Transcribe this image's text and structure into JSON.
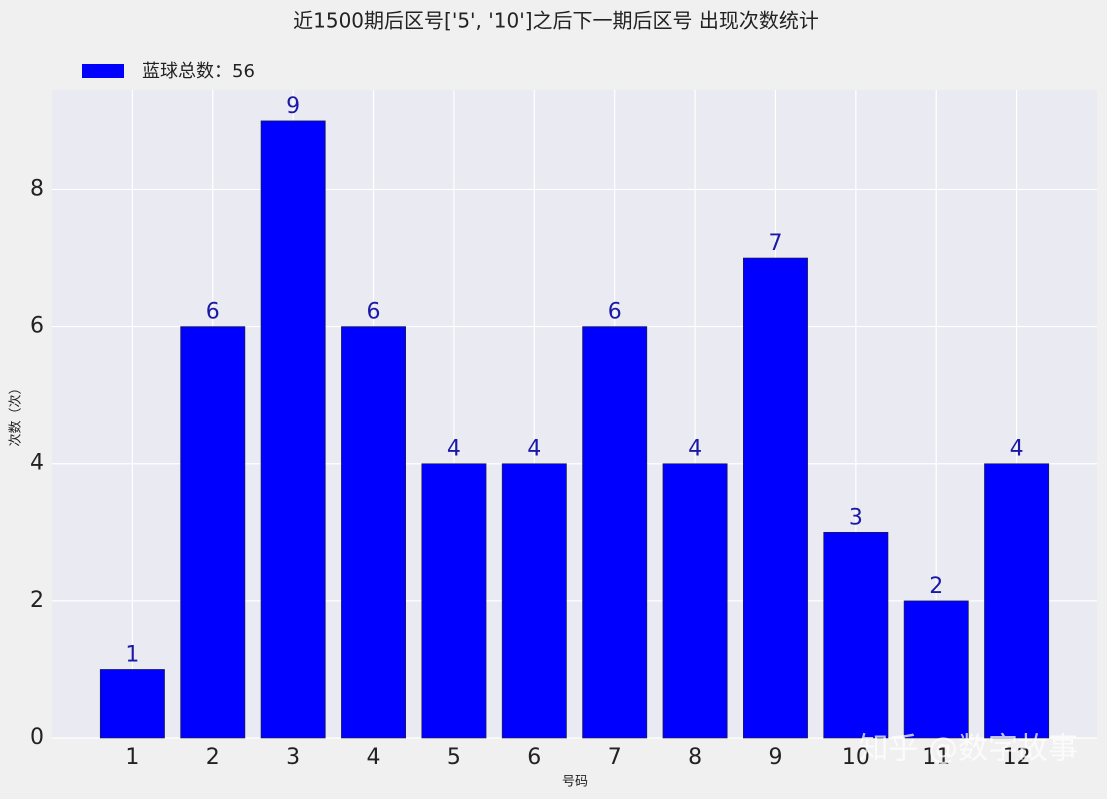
{
  "chart_data": {
    "type": "bar",
    "title": "近1500期后区号['5', '10']之后下一期后区号 出现次数统计",
    "x_label": "号码",
    "y_label": "次数（次）",
    "categories": [
      "1",
      "2",
      "3",
      "4",
      "5",
      "6",
      "7",
      "8",
      "9",
      "10",
      "11",
      "12"
    ],
    "series": [
      {
        "name": "蓝球总数：56",
        "color": "#0000ff",
        "values": [
          1,
          6,
          9,
          6,
          4,
          4,
          6,
          4,
          7,
          3,
          2,
          4
        ]
      }
    ],
    "ylim": [
      0,
      9.45
    ],
    "yticks": [
      0,
      2,
      4,
      6,
      8
    ],
    "grid": true,
    "legend": "upper left",
    "watermark": "知乎 @数字故事"
  }
}
